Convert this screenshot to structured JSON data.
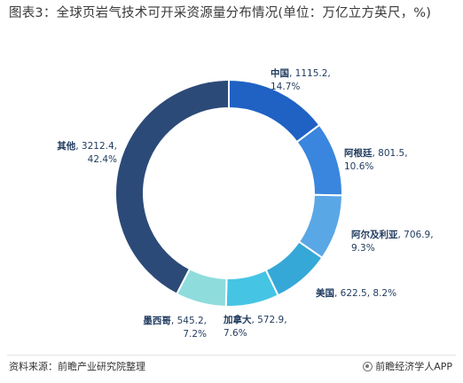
{
  "title": "图表3：全球页岩气技术可开采资源量分布情况(单位：万亿立方英尺，%)",
  "chart_data": {
    "type": "pie",
    "style": "donut",
    "title": "图表3：全球页岩气技术可开采资源量分布情况(单位：万亿立方英尺，%)",
    "slices": [
      {
        "name": "中国",
        "value": 1115.2,
        "percent": "14.7%",
        "color": "#1f62c4"
      },
      {
        "name": "阿根廷",
        "value": 801.5,
        "percent": "10.6%",
        "color": "#3a86de"
      },
      {
        "name": "阿尔及利亚",
        "value": 706.9,
        "percent": "9.3%",
        "color": "#5aa7e6"
      },
      {
        "name": "美国",
        "value": 622.5,
        "percent": "8.2%",
        "color": "#35a8d8"
      },
      {
        "name": "加拿大",
        "value": 572.9,
        "percent": "7.6%",
        "color": "#46c4e4"
      },
      {
        "name": "墨西哥",
        "value": 545.2,
        "percent": "7.2%",
        "color": "#8fdcdc"
      },
      {
        "name": "其他",
        "value": 3212.4,
        "percent": "42.4%",
        "color": "#2c4a78"
      }
    ]
  },
  "footer": {
    "source": "资料来源：前瞻产业研究院整理",
    "brand": "前瞻经济学人APP"
  }
}
